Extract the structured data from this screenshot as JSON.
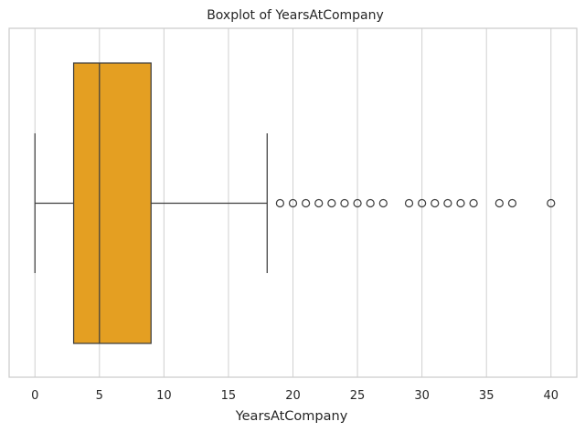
{
  "chart_data": {
    "type": "boxplot",
    "title": "Boxplot of YearsAtCompany",
    "xlabel": "YearsAtCompany",
    "ylabel": "",
    "xlim": [
      -2,
      42
    ],
    "xticks": [
      0,
      5,
      10,
      15,
      20,
      25,
      30,
      35,
      40
    ],
    "grid": true,
    "orientation": "horizontal",
    "box": {
      "whisker_low": 0,
      "q1": 3,
      "median": 5,
      "q3": 9,
      "whisker_high": 18,
      "outliers": [
        19,
        20,
        21,
        22,
        23,
        24,
        25,
        26,
        27,
        29,
        30,
        31,
        32,
        33,
        34,
        36,
        37,
        40
      ]
    },
    "colors": {
      "box_fill": "#E49F22",
      "box_edge": "#3f3f3f",
      "grid": "#d0d0d0",
      "frame": "#cccccc"
    }
  }
}
